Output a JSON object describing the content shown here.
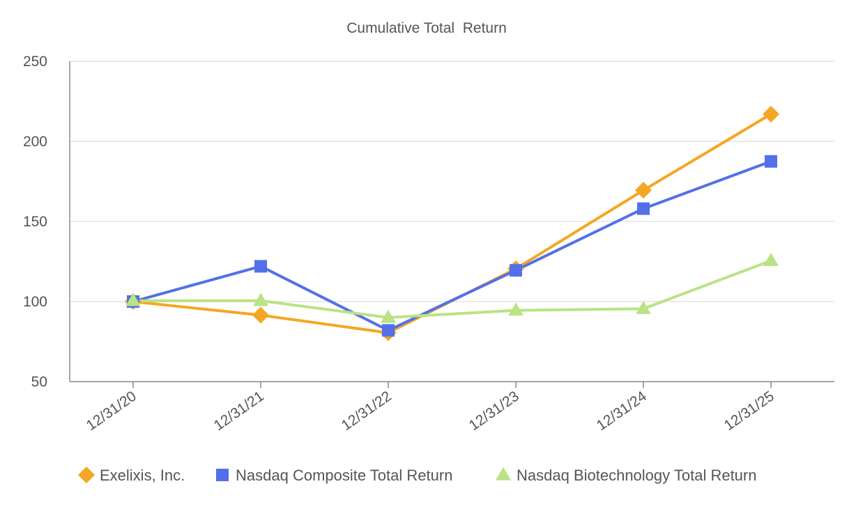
{
  "chart_data": {
    "type": "line",
    "title": "Cumulative Total  Return",
    "xlabel": "",
    "ylabel": "",
    "categories": [
      "12/31/20",
      "12/31/21",
      "12/31/22",
      "12/31/23",
      "12/31/24",
      "12/31/25"
    ],
    "ylim": [
      50,
      250
    ],
    "yticks": [
      50,
      100,
      150,
      200,
      250
    ],
    "grid": true,
    "legend_position": "bottom",
    "series": [
      {
        "name": "Exelixis, Inc.",
        "color": "#F5A623",
        "marker": "diamond",
        "values": [
          100,
          91.5,
          80.5,
          120.5,
          169.5,
          217
        ]
      },
      {
        "name": "Nasdaq Composite Total Return",
        "color": "#5470E8",
        "marker": "square",
        "values": [
          100,
          122,
          82,
          119.5,
          158,
          187.5
        ]
      },
      {
        "name": "Nasdaq Biotechnology Total Return",
        "color": "#B9E384",
        "marker": "triangle",
        "values": [
          100.5,
          100.5,
          90,
          94.5,
          95.5,
          125.5
        ]
      }
    ]
  }
}
